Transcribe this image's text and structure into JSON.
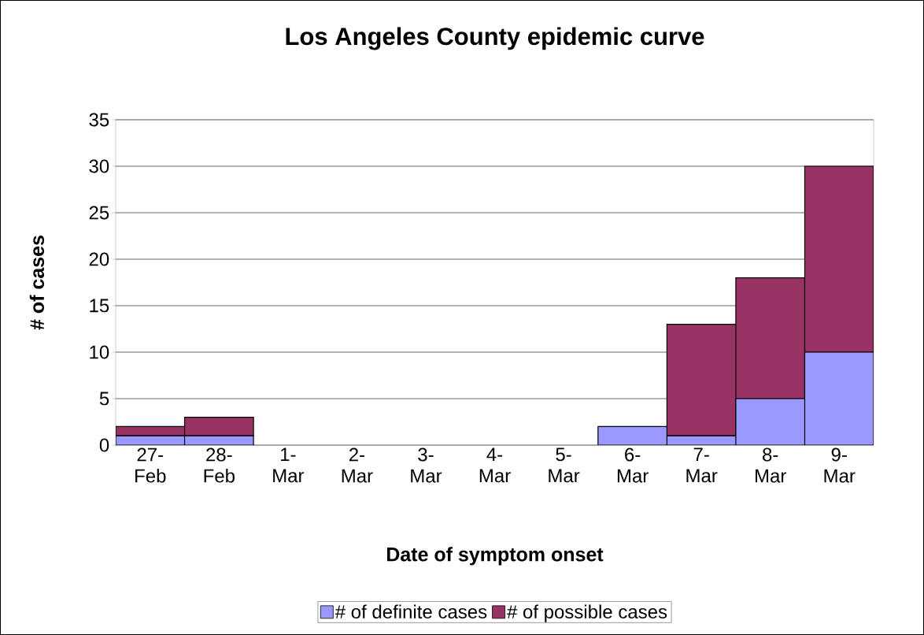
{
  "chart_data": {
    "type": "bar",
    "title": "Los Angeles County epidemic curve",
    "xlabel": "Date of symptom onset",
    "ylabel": "# of cases",
    "categories": [
      "27-Feb",
      "28-Feb",
      "1-Mar",
      "2-Mar",
      "3-Mar",
      "4-Mar",
      "5-Mar",
      "6-Mar",
      "7-Mar",
      "8-Mar",
      "9-Mar"
    ],
    "series": [
      {
        "name": "# of definite cases",
        "color": "#9999ff",
        "values": [
          1,
          1,
          0,
          0,
          0,
          0,
          0,
          2,
          1,
          5,
          10
        ]
      },
      {
        "name": "# of possible cases",
        "color": "#993366",
        "values": [
          1,
          2,
          0,
          0,
          0,
          0,
          0,
          0,
          12,
          13,
          20
        ]
      }
    ],
    "stacked": true,
    "ylim": [
      0,
      35
    ],
    "yticks": [
      0,
      5,
      10,
      15,
      20,
      25,
      30,
      35
    ],
    "grid": "y",
    "legend": "bottom"
  }
}
